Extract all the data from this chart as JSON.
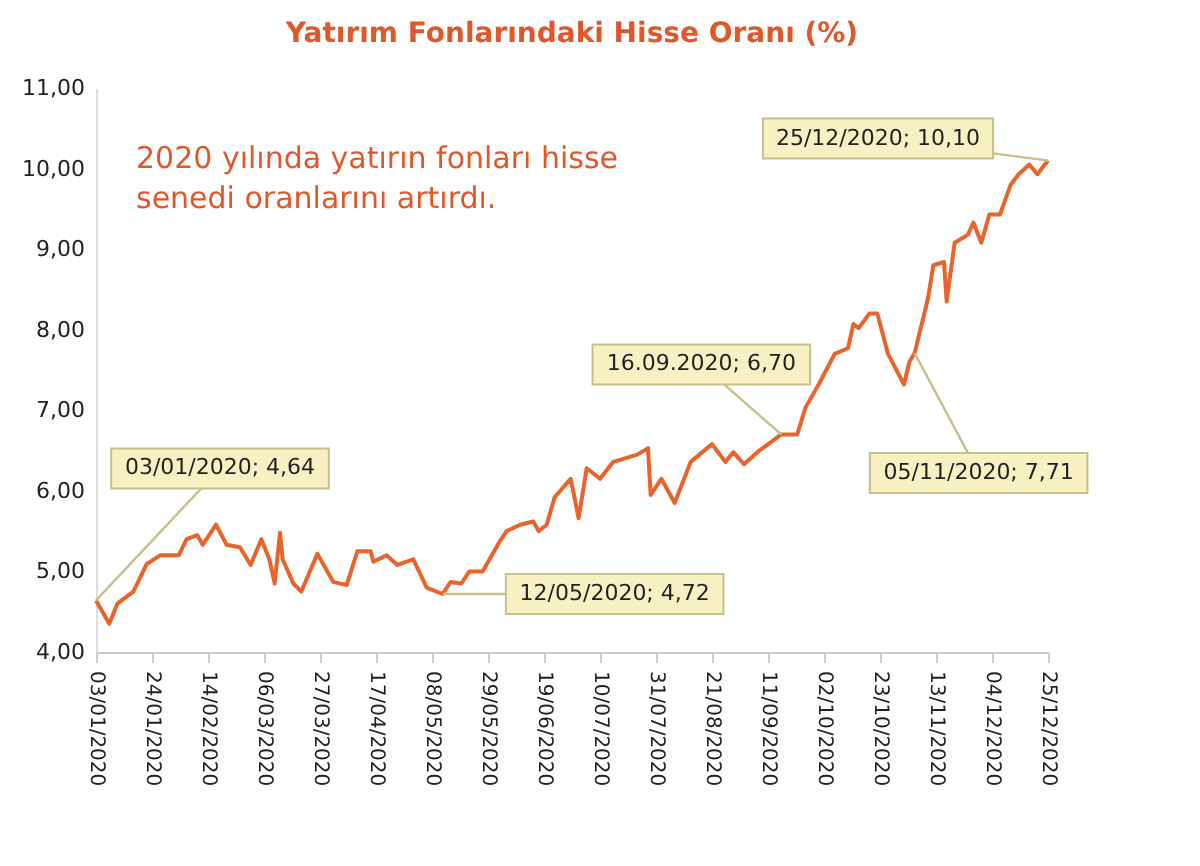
{
  "chart_data": {
    "type": "line",
    "title": "Yatırım Fonlarındaki Hisse Oranı (%)",
    "x": [
      "2020-01-03",
      "2020-01-08",
      "2020-01-11",
      "2020-01-17",
      "2020-01-22",
      "2020-01-27",
      "2020-02-03",
      "2020-02-06",
      "2020-02-10",
      "2020-02-12",
      "2020-02-17",
      "2020-02-21",
      "2020-02-26",
      "2020-03-01",
      "2020-03-05",
      "2020-03-08",
      "2020-03-10",
      "2020-03-12",
      "2020-03-13",
      "2020-03-17",
      "2020-03-20",
      "2020-03-26",
      "2020-04-01",
      "2020-04-06",
      "2020-04-10",
      "2020-04-15",
      "2020-04-16",
      "2020-04-21",
      "2020-04-25",
      "2020-05-01",
      "2020-05-06",
      "2020-05-12",
      "2020-05-15",
      "2020-05-19",
      "2020-05-22",
      "2020-05-27",
      "2020-06-02",
      "2020-06-05",
      "2020-06-10",
      "2020-06-15",
      "2020-06-17",
      "2020-06-20",
      "2020-06-23",
      "2020-06-29",
      "2020-07-02",
      "2020-07-05",
      "2020-07-10",
      "2020-07-15",
      "2020-07-24",
      "2020-07-28",
      "2020-07-29",
      "2020-08-02",
      "2020-08-07",
      "2020-08-13",
      "2020-08-21",
      "2020-08-26",
      "2020-08-29",
      "2020-09-02",
      "2020-09-07",
      "2020-09-16",
      "2020-09-22",
      "2020-09-25",
      "2020-09-30",
      "2020-10-06",
      "2020-10-11",
      "2020-10-13",
      "2020-10-15",
      "2020-10-19",
      "2020-10-22",
      "2020-10-26",
      "2020-11-01",
      "2020-11-03",
      "2020-11-05",
      "2020-11-10",
      "2020-11-12",
      "2020-11-16",
      "2020-11-17",
      "2020-11-20",
      "2020-11-25",
      "2020-11-27",
      "2020-11-30",
      "2020-12-03",
      "2020-12-07",
      "2020-12-11",
      "2020-12-14",
      "2020-12-18",
      "2020-12-21",
      "2020-12-25"
    ],
    "series": [
      {
        "color": "#e8642c",
        "values": [
          4.64,
          4.35,
          4.6,
          4.75,
          5.09,
          5.2,
          5.2,
          5.4,
          5.45,
          5.33,
          5.58,
          5.33,
          5.3,
          5.08,
          5.4,
          5.15,
          4.85,
          5.48,
          5.15,
          4.85,
          4.75,
          5.22,
          4.87,
          4.83,
          5.25,
          5.25,
          5.12,
          5.2,
          5.08,
          5.15,
          4.8,
          4.72,
          4.87,
          4.85,
          5.0,
          5.0,
          5.35,
          5.5,
          5.58,
          5.62,
          5.5,
          5.58,
          5.92,
          6.15,
          5.66,
          6.28,
          6.15,
          6.36,
          6.45,
          6.53,
          5.95,
          6.15,
          5.85,
          6.36,
          6.58,
          6.36,
          6.48,
          6.33,
          6.48,
          6.7,
          6.7,
          7.03,
          7.32,
          7.7,
          7.77,
          8.07,
          8.02,
          8.2,
          8.2,
          7.7,
          7.32,
          7.6,
          7.71,
          8.39,
          8.8,
          8.84,
          8.35,
          9.08,
          9.18,
          9.33,
          9.08,
          9.43,
          9.43,
          9.8,
          9.93,
          10.05,
          9.93,
          10.1
        ]
      }
    ],
    "xlim": [
      "2020-01-03",
      "2020-12-25"
    ],
    "xticks": [
      {
        "value": "2020-01-03",
        "label": "03/01/2020"
      },
      {
        "value": "2020-01-24",
        "label": "24/01/2020"
      },
      {
        "value": "2020-02-14",
        "label": "14/02/2020"
      },
      {
        "value": "2020-03-06",
        "label": "06/03/2020"
      },
      {
        "value": "2020-03-27",
        "label": "27/03/2020"
      },
      {
        "value": "2020-04-17",
        "label": "17/04/2020"
      },
      {
        "value": "2020-05-08",
        "label": "08/05/2020"
      },
      {
        "value": "2020-05-29",
        "label": "29/05/2020"
      },
      {
        "value": "2020-06-19",
        "label": "19/06/2020"
      },
      {
        "value": "2020-07-10",
        "label": "10/07/2020"
      },
      {
        "value": "2020-07-31",
        "label": "31/07/2020"
      },
      {
        "value": "2020-08-21",
        "label": "21/08/2020"
      },
      {
        "value": "2020-09-11",
        "label": "11/09/2020"
      },
      {
        "value": "2020-10-02",
        "label": "02/10/2020"
      },
      {
        "value": "2020-10-23",
        "label": "23/10/2020"
      },
      {
        "value": "2020-11-13",
        "label": "13/11/2020"
      },
      {
        "value": "2020-12-04",
        "label": "04/12/2020"
      },
      {
        "value": "2020-12-25",
        "label": "25/12/2020"
      }
    ],
    "ylim": [
      4,
      11
    ],
    "yticks": [
      {
        "value": 4,
        "label": "4,00"
      },
      {
        "value": 5,
        "label": "5,00"
      },
      {
        "value": 6,
        "label": "6,00"
      },
      {
        "value": 7,
        "label": "7,00"
      },
      {
        "value": 8,
        "label": "8,00"
      },
      {
        "value": 9,
        "label": "9,00"
      },
      {
        "value": 10,
        "label": "10,00"
      },
      {
        "value": 11,
        "label": "11,00"
      }
    ],
    "grid": false,
    "marker": "none",
    "line_style": "solid",
    "annotations": [
      "2020 yılında yatırın fonları hisse\nsenedi oranlarını artırdı.",
      {
        "text": "03/01/2020; 4,64",
        "x": "2020-01-03",
        "y": 4.64
      },
      {
        "text": "12/05/2020; 4,72",
        "x": "2020-05-12",
        "y": 4.72
      },
      {
        "text": "16.09.2020; 6,70",
        "x": "2020-09-16",
        "y": 6.7
      },
      {
        "text": "05/11/2020; 7,71",
        "x": "2020-11-05",
        "y": 7.71
      },
      {
        "text": "25/12/2020; 10,10",
        "x": "2020-12-25",
        "y": 10.1
      }
    ]
  }
}
